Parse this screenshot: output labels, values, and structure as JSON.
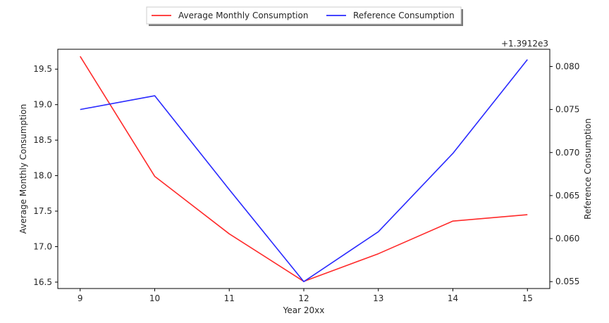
{
  "chart_data": {
    "type": "line",
    "x": [
      9,
      10,
      11,
      12,
      13,
      14,
      15
    ],
    "xlabel": "Year 20xx",
    "xlim": [
      8.7,
      15.3
    ],
    "series": [
      {
        "name": "Average Monthly Consumption",
        "axis": "left",
        "color": "#ff2a2a",
        "values": [
          19.68,
          17.99,
          17.18,
          16.51,
          16.9,
          17.36,
          17.45
        ]
      },
      {
        "name": "Reference Consumption",
        "axis": "right",
        "color": "#2a2aff",
        "values": [
          1391.275,
          1391.2766,
          1391.2657,
          1391.255,
          1391.2608,
          1391.2699,
          1391.2808
        ]
      }
    ],
    "y_left": {
      "label": "Average Monthly Consumption",
      "lim": [
        16.41,
        19.78
      ],
      "ticks": [
        16.5,
        17.0,
        17.5,
        18.0,
        18.5,
        19.0,
        19.5
      ],
      "tick_labels": [
        "16.5",
        "17.0",
        "17.5",
        "18.0",
        "18.5",
        "19.0",
        "19.5"
      ]
    },
    "y_right": {
      "label": "Reference Consumption",
      "offset_text": "+1.3912e3",
      "offset": 1391.2,
      "lim": [
        1391.2542,
        1391.282
      ],
      "ticks": [
        0.055,
        0.06,
        0.065,
        0.07,
        0.075,
        0.08
      ],
      "tick_labels": [
        "0.055",
        "0.060",
        "0.065",
        "0.070",
        "0.075",
        "0.080"
      ]
    },
    "x_tick_labels": [
      "9",
      "10",
      "11",
      "12",
      "13",
      "14",
      "15"
    ],
    "legend": {
      "placement": "top-center",
      "columns": 2
    },
    "grid": false
  }
}
